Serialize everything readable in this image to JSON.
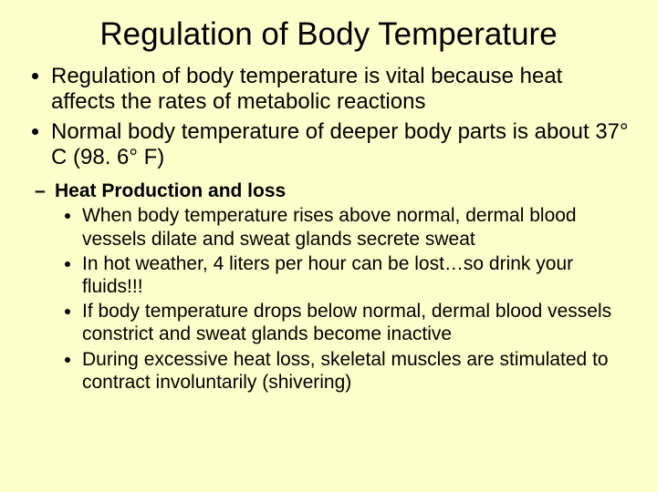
{
  "background_color": "#ffffcc",
  "text_color": "#000000",
  "title": {
    "text": "Regulation of Body Temperature",
    "fontsize": 35,
    "weight": "normal",
    "align": "center"
  },
  "bullets_level1": [
    "Regulation of body temperature is vital because heat affects the rates of metabolic reactions",
    "Normal body temperature of deeper body parts is about 37° C (98. 6° F)"
  ],
  "sub_heading": "Heat Production and loss",
  "bullets_level3": [
    "When body temperature rises above normal, dermal blood vessels dilate and sweat glands secrete sweat",
    "In hot weather, 4 liters per hour can be lost…so drink your fluids!!!",
    "If body temperature drops below normal, dermal blood vessels constrict and sweat glands become inactive",
    "During excessive heat loss, skeletal muscles are stimulated to contract involuntarily (shivering)"
  ],
  "font_family": "Arial",
  "level1_fontsize": 24,
  "level2_fontsize": 21,
  "level3_fontsize": 21
}
